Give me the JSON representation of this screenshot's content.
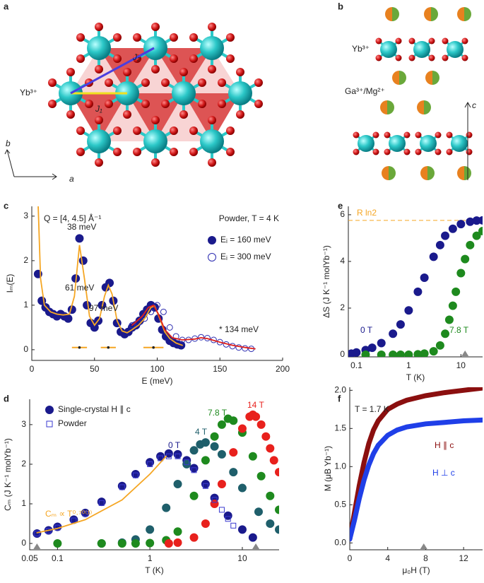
{
  "structure_a": {
    "label": "a",
    "ion": "Yb³⁺",
    "j2": "J₂",
    "j1": "J₁",
    "axis_b": "b",
    "axis_a": "a"
  },
  "structure_b": {
    "label": "b",
    "ion_yb": "Yb³⁺",
    "ion_ga": "Ga³⁺/Mg²⁺",
    "axis_c": "c"
  },
  "chart_data": [
    {
      "type": "scatter",
      "label": "c",
      "xlabel": "E (meV)",
      "ylabel": "Iₘ(E)",
      "xlim": [
        0,
        200
      ],
      "xticks": [
        0,
        50,
        100,
        150,
        200
      ],
      "ylim": [
        -0.24,
        3.22
      ],
      "yticks": [
        0,
        1,
        2,
        3
      ],
      "annotations": [
        "Q = [4, 4.5] Å⁻¹",
        "Powder, T = 4 K",
        "38 meV",
        "61 meV",
        "97 meV",
        "* 134 meV"
      ],
      "series": [
        {
          "name": "Eᵢ = 160 meV",
          "marker": "filled-circle",
          "color": "#1a1a8c",
          "x": [
            5,
            8,
            11,
            14,
            17,
            20,
            23,
            26,
            29,
            32,
            35,
            38,
            41,
            44,
            47,
            50,
            53,
            56,
            59,
            62,
            65,
            68,
            71,
            74,
            77,
            80,
            83,
            86,
            89,
            92,
            95,
            98,
            101,
            104,
            107,
            110,
            113,
            116,
            119
          ],
          "values": [
            1.7,
            1.1,
            0.95,
            0.85,
            0.8,
            0.75,
            0.8,
            0.75,
            0.7,
            0.9,
            1.6,
            2.5,
            2.0,
            1.0,
            0.6,
            0.5,
            0.65,
            1.0,
            1.4,
            1.5,
            1.1,
            0.6,
            0.4,
            0.35,
            0.4,
            0.5,
            0.55,
            0.65,
            0.8,
            0.9,
            1.0,
            0.95,
            0.7,
            0.45,
            0.3,
            0.2,
            0.15,
            0.12,
            0.1
          ]
        },
        {
          "name": "Eᵢ = 300 meV",
          "marker": "open-circle",
          "color": "#2a2ab0",
          "x": [
            80,
            85,
            90,
            95,
            100,
            105,
            110,
            115,
            120,
            125,
            130,
            135,
            140,
            145,
            150,
            155,
            160,
            165,
            170,
            175
          ],
          "values": [
            0.55,
            0.6,
            0.7,
            0.85,
            1.0,
            0.85,
            0.5,
            0.3,
            0.22,
            0.22,
            0.25,
            0.28,
            0.26,
            0.22,
            0.17,
            0.12,
            0.08,
            0.05,
            0.03,
            0.02
          ]
        },
        {
          "marker": "line",
          "color": "#f5a623",
          "x": [
            5,
            7,
            10,
            15,
            20,
            25,
            30,
            34,
            38,
            42,
            46,
            50,
            54,
            58,
            61,
            64,
            68,
            72,
            76,
            80,
            85,
            90,
            95,
            98,
            102,
            106,
            110,
            115,
            120
          ],
          "values": [
            3.3,
            1.6,
            1.0,
            0.85,
            0.8,
            0.78,
            0.8,
            1.2,
            2.35,
            1.6,
            0.75,
            0.55,
            0.7,
            1.2,
            1.45,
            1.25,
            0.65,
            0.42,
            0.38,
            0.45,
            0.55,
            0.7,
            0.95,
            0.98,
            0.7,
            0.4,
            0.25,
            0.15,
            0.1
          ]
        },
        {
          "marker": "line",
          "color": "#e0201b",
          "x": [
            80,
            88,
            93,
            97,
            101,
            106,
            112,
            120,
            130,
            135,
            140,
            150,
            160,
            170,
            178
          ],
          "values": [
            0.55,
            0.75,
            0.95,
            1.0,
            0.8,
            0.45,
            0.27,
            0.22,
            0.24,
            0.27,
            0.25,
            0.17,
            0.1,
            0.05,
            0.02
          ]
        }
      ],
      "error_bars": {
        "color": "#f5a623",
        "x": [
          38,
          61,
          97
        ],
        "xerr": [
          6,
          6,
          8
        ],
        "y": [
          0.05,
          0.05,
          0.05
        ]
      }
    },
    {
      "type": "scatter",
      "label": "e",
      "xlabel": "T (K)",
      "ylabel": "ΔS (J K⁻¹ molYb⁻¹)",
      "xlog": true,
      "xlim": [
        0.07,
        26
      ],
      "xticks": [
        0.1,
        1,
        10
      ],
      "ylim": [
        -0.09,
        6.36
      ],
      "yticks": [
        0,
        2,
        4,
        6
      ],
      "reference_line": {
        "value": 5.76,
        "label": "R ln2",
        "color": "#f5a623"
      },
      "triangle_markers": [
        12
      ],
      "series": [
        {
          "name": "0 T",
          "marker": "filled-circle",
          "color": "#1a1a8c",
          "x": [
            0.08,
            0.1,
            0.15,
            0.2,
            0.3,
            0.5,
            0.7,
            1,
            1.5,
            2,
            3,
            4,
            5,
            7,
            10,
            15,
            20,
            26
          ],
          "values": [
            0.05,
            0.1,
            0.2,
            0.3,
            0.5,
            0.9,
            1.3,
            1.9,
            2.7,
            3.3,
            4.2,
            4.7,
            5.1,
            5.4,
            5.6,
            5.7,
            5.75,
            5.76
          ]
        },
        {
          "name": "7.8 T",
          "marker": "filled-circle",
          "color": "#1e8a1e",
          "x": [
            0.15,
            0.3,
            0.5,
            0.7,
            1,
            1.5,
            2,
            3,
            4,
            5,
            6,
            7,
            8,
            10,
            12,
            15,
            20,
            26
          ],
          "values": [
            0,
            0,
            0,
            0,
            0,
            0.02,
            0.05,
            0.15,
            0.4,
            0.9,
            1.5,
            2.1,
            2.7,
            3.5,
            4.1,
            4.7,
            5.1,
            5.3
          ]
        }
      ]
    },
    {
      "type": "scatter",
      "label": "d",
      "xlabel": "T (K)",
      "ylabel": "Cₘ (J K⁻¹ molYb⁻¹)",
      "xlog": true,
      "xlim": [
        0.05,
        25
      ],
      "xticks": [
        0.05,
        0.1,
        1,
        10
      ],
      "ylim": [
        -0.16,
        3.64
      ],
      "yticks": [
        0,
        1,
        2,
        3
      ],
      "triangle_markers": [
        0.06,
        14
      ],
      "series": [
        {
          "name": "0 T",
          "legend": "Single-crystal H ∥ c",
          "marker": "filled-circle",
          "color": "#1a1a8c",
          "x": [
            0.06,
            0.08,
            0.1,
            0.15,
            0.2,
            0.3,
            0.5,
            0.7,
            1,
            1.3,
            1.6,
            2,
            2.5,
            3,
            4,
            5,
            7,
            10,
            13
          ],
          "values": [
            0.25,
            0.33,
            0.42,
            0.6,
            0.77,
            1.05,
            1.45,
            1.75,
            2.05,
            2.2,
            2.27,
            2.25,
            2.1,
            1.9,
            1.5,
            1.15,
            0.7,
            0.35,
            0.15
          ]
        },
        {
          "name": "4 T",
          "marker": "filled-circle",
          "color": "#1f5f6b",
          "x": [
            0.3,
            0.5,
            0.7,
            1,
            1.5,
            2,
            2.5,
            3,
            3.5,
            4,
            5,
            6,
            8,
            10,
            15,
            20,
            25
          ],
          "values": [
            0,
            0.02,
            0.1,
            0.35,
            0.9,
            1.5,
            2.0,
            2.35,
            2.5,
            2.55,
            2.45,
            2.25,
            1.8,
            1.4,
            0.8,
            0.5,
            0.35
          ]
        },
        {
          "name": "7.8 T",
          "marker": "filled-circle",
          "color": "#1e8a1e",
          "x": [
            0.1,
            0.3,
            0.5,
            0.7,
            1,
            1.5,
            2,
            3,
            4,
            5,
            6,
            7,
            8,
            10,
            13,
            16,
            20,
            25
          ],
          "values": [
            0,
            0,
            0,
            0,
            0.01,
            0.08,
            0.3,
            1.2,
            2.1,
            2.7,
            3.0,
            3.15,
            3.1,
            2.8,
            2.2,
            1.7,
            1.2,
            0.85
          ]
        },
        {
          "name": "14 T",
          "marker": "filled-circle",
          "color": "#e8211d",
          "x": [
            1.6,
            2,
            3,
            4,
            5,
            6,
            8,
            10,
            12,
            13,
            14,
            16,
            18,
            20,
            22,
            25
          ],
          "values": [
            0,
            0.02,
            0.15,
            0.5,
            1.0,
            1.5,
            2.3,
            2.9,
            3.2,
            3.25,
            3.2,
            3.0,
            2.7,
            2.4,
            2.1,
            1.8
          ]
        },
        {
          "name": "Powder",
          "marker": "open-square",
          "color": "#3a3ad0",
          "x": [
            0.06,
            0.08,
            0.1,
            0.15,
            0.2,
            0.3,
            0.5,
            0.7,
            1,
            1.3,
            1.6,
            2,
            2.5,
            3,
            4,
            5,
            6,
            7,
            8
          ],
          "values": [
            0.25,
            0.32,
            0.4,
            0.58,
            0.75,
            1.02,
            1.42,
            1.72,
            2.0,
            2.15,
            2.2,
            2.2,
            2.05,
            1.85,
            1.45,
            1.1,
            0.85,
            0.62,
            0.45
          ]
        },
        {
          "name": "Cₘ ∝ T⁰·⁷⁰⁽¹⁾",
          "marker": "line",
          "color": "#f5a623",
          "x": [
            0.06,
            0.1,
            0.2,
            0.5,
            1,
            1.5
          ],
          "values": [
            0.27,
            0.38,
            0.6,
            1.1,
            1.75,
            2.2
          ]
        }
      ]
    },
    {
      "type": "line",
      "label": "f",
      "xlabel": "μ₀H (T)",
      "ylabel": "M (μB Yb⁻¹)",
      "xlim": [
        0,
        14
      ],
      "xticks": [
        0,
        4,
        8,
        12
      ],
      "ylim": [
        -0.09,
        2.04
      ],
      "yticks": [
        {
          "value": 0,
          "label": "0.0"
        },
        0.5,
        {
          "value": 1,
          "label": "1.0"
        },
        1.5,
        {
          "value": 2,
          "label": "2.0"
        }
      ],
      "annotations": [
        "T = 1.7 K"
      ],
      "triangle_markers": [
        7.8
      ],
      "series": [
        {
          "name": "H ∥ c",
          "marker": "thick-line",
          "color": "#8b0f0f",
          "x": [
            0,
            0.5,
            1,
            1.5,
            2,
            2.5,
            3,
            4,
            5,
            6,
            8,
            10,
            12,
            14
          ],
          "values": [
            0.05,
            0.4,
            0.75,
            1.05,
            1.3,
            1.48,
            1.6,
            1.75,
            1.82,
            1.87,
            1.93,
            1.97,
            2.0,
            2.03
          ]
        },
        {
          "name": "H ⊥ c",
          "marker": "thick-line",
          "color": "#1f3fe8",
          "x": [
            0,
            0.5,
            1,
            1.5,
            2,
            2.5,
            3,
            4,
            5,
            6,
            8,
            10,
            12,
            14
          ],
          "values": [
            0.05,
            0.3,
            0.58,
            0.82,
            1.02,
            1.17,
            1.28,
            1.41,
            1.48,
            1.52,
            1.56,
            1.58,
            1.6,
            1.61
          ]
        }
      ]
    }
  ]
}
